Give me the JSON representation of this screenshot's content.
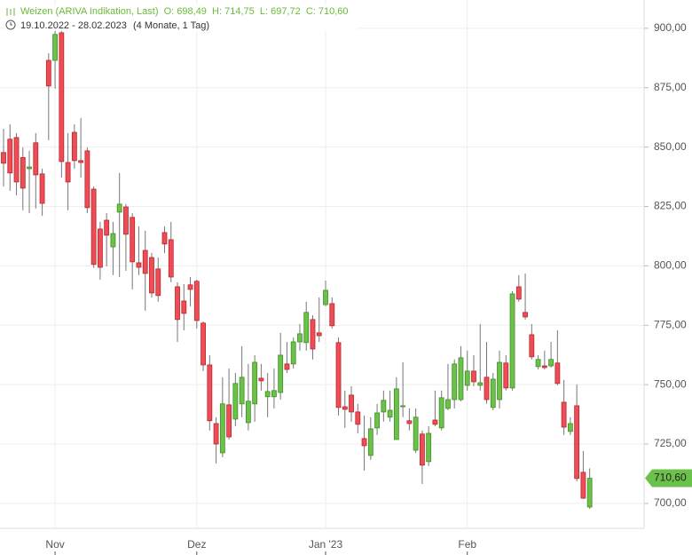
{
  "chart_data": {
    "type": "candlestick",
    "title": "Weizen (ARIVA Indikation, Last)  O: 698,49  H: 714,75  L: 697,72  C: 710,60",
    "subtitle": "19.10.2022 - 28.02.2023",
    "period": "(4 Monate, 1 Tag)",
    "up_color": "#6cc14a",
    "down_color": "#ef4d55",
    "grid": true,
    "ylim": [
      689.5,
      911.9
    ],
    "yticks": [
      {
        "value": 700,
        "label": "700,00"
      },
      {
        "value": 725,
        "label": "725,00"
      },
      {
        "value": 750,
        "label": "750,00"
      },
      {
        "value": 775,
        "label": "775,00"
      },
      {
        "value": 800,
        "label": "800,00"
      },
      {
        "value": 825,
        "label": "825,00"
      },
      {
        "value": 850,
        "label": "850,00"
      },
      {
        "value": 875,
        "label": "875,00"
      },
      {
        "value": 900,
        "label": "900,00"
      }
    ],
    "last_price": {
      "value": 710.6,
      "label": "710,60"
    },
    "categories": [
      null,
      null,
      null,
      null,
      null,
      null,
      null,
      null,
      "Nov",
      null,
      null,
      null,
      null,
      null,
      null,
      null,
      null,
      null,
      null,
      null,
      null,
      null,
      null,
      null,
      null,
      null,
      null,
      null,
      null,
      null,
      "Dez",
      null,
      null,
      null,
      null,
      null,
      null,
      null,
      null,
      null,
      null,
      null,
      null,
      null,
      null,
      null,
      null,
      null,
      null,
      null,
      "Jan '23",
      null,
      null,
      null,
      null,
      null,
      null,
      null,
      null,
      null,
      null,
      null,
      null,
      null,
      null,
      null,
      null,
      null,
      null,
      null,
      null,
      null,
      "Feb",
      null,
      null,
      null,
      null,
      null,
      null,
      null,
      null,
      null,
      null,
      null,
      null,
      null,
      null,
      null,
      null,
      null,
      null,
      null
    ],
    "open": [
      847.7,
      853.3,
      854.0,
      845.6,
      840.9,
      851.8,
      838.7,
      886.5,
      886.5,
      898.1,
      843.5,
      856.2,
      844.3,
      848.4,
      832.3,
      815.5,
      819.2,
      808.0,
      822.6,
      824.8,
      820.4,
      801.3,
      806.5,
      803.5,
      798.7,
      814.0,
      811.0,
      791.2,
      785.2,
      792.0,
      793.5,
      775.9,
      758.3,
      733.6,
      721.3,
      741.5,
      735.5,
      741.9,
      734.0,
      741.9,
      752.7,
      744.9,
      744.9,
      746.7,
      758.7,
      758.7,
      768.0,
      767.7,
      777.4,
      771.8,
      783.7,
      784.1,
      767.7,
      740.7,
      745.6,
      738.5,
      727.3,
      720.2,
      731.8,
      738.5,
      736.3,
      726.9,
      740.7,
      734.8,
      722.4,
      729.2,
      717.6,
      735.1,
      731.8,
      740.0,
      743.7,
      743.7,
      749.7,
      755.7,
      749.7,
      753.1,
      740.4,
      743.7,
      759.1,
      748.6,
      791.2,
      780.4,
      771.0,
      757.6,
      757.9,
      757.9,
      759.1,
      742.6,
      730.3,
      741.1,
      713.1,
      698.49
    ],
    "high": [
      857.7,
      859.6,
      855.9,
      849.8,
      848.4,
      855.9,
      840.9,
      889.5,
      900.7,
      900.7,
      855.9,
      859.6,
      862.2,
      849.8,
      833.4,
      818.5,
      822.2,
      818.5,
      839.1,
      826.0,
      822.2,
      816.6,
      814.8,
      805.4,
      803.5,
      816.6,
      818.5,
      793.1,
      792.3,
      795.3,
      794.2,
      776.6,
      762.4,
      736.3,
      753.1,
      756.8,
      754.9,
      766.2,
      758.7,
      762.4,
      758.7,
      754.9,
      756.8,
      771.8,
      768.0,
      769.9,
      775.5,
      784.9,
      779.2,
      786.7,
      793.8,
      786.7,
      769.9,
      747.5,
      749.3,
      741.9,
      737.0,
      736.3,
      741.9,
      747.5,
      747.5,
      753.1,
      759.4,
      740.0,
      740.0,
      730.7,
      732.5,
      747.5,
      747.5,
      758.7,
      760.6,
      766.2,
      764.3,
      762.4,
      775.5,
      768.0,
      754.9,
      764.3,
      762.4,
      789.3,
      796.1,
      796.8,
      775.5,
      762.4,
      764.3,
      768.0,
      772.9,
      752.0,
      736.3,
      750.1,
      722.1,
      714.75
    ],
    "low": [
      833.4,
      831.6,
      829.7,
      823.4,
      822.2,
      824.1,
      821.1,
      852.9,
      874.6,
      837.2,
      823.4,
      840.9,
      837.2,
      822.2,
      799.1,
      794.2,
      799.8,
      796.1,
      795.3,
      797.9,
      790.1,
      796.1,
      781.1,
      786.7,
      784.9,
      805.4,
      793.1,
      768.0,
      772.9,
      783.0,
      773.6,
      755.7,
      730.7,
      716.8,
      719.4,
      726.9,
      732.5,
      736.3,
      730.7,
      734.4,
      747.5,
      736.3,
      740.0,
      743.7,
      754.9,
      756.8,
      764.3,
      764.3,
      760.6,
      768.0,
      783.0,
      773.6,
      737.0,
      731.8,
      734.4,
      729.5,
      713.8,
      718.3,
      728.8,
      734.4,
      734.4,
      726.9,
      736.3,
      730.7,
      721.3,
      708.2,
      715.7,
      732.5,
      730.7,
      739.2,
      740.0,
      743.0,
      747.5,
      749.3,
      747.5,
      741.9,
      739.2,
      740.0,
      747.5,
      747.5,
      784.9,
      777.4,
      760.6,
      756.4,
      756.4,
      757.2,
      749.7,
      728.8,
      728.8,
      709.3,
      701.9,
      697.72
    ],
    "close": [
      843.2,
      839.1,
      835.3,
      832.7,
      841.6,
      838.3,
      826.3,
      875.7,
      897.4,
      843.9,
      835.3,
      844.3,
      843.5,
      824.5,
      800.6,
      799.4,
      812.9,
      813.6,
      826.0,
      813.3,
      801.7,
      799.4,
      796.8,
      788.6,
      787.5,
      809.2,
      795.3,
      777.4,
      780.0,
      790.1,
      777.0,
      758.3,
      734.8,
      725.0,
      741.9,
      728.0,
      750.5,
      753.1,
      743.0,
      759.4,
      751.6,
      747.1,
      747.5,
      762.4,
      756.4,
      768.0,
      771.4,
      780.4,
      765.0,
      770.6,
      789.7,
      774.8,
      740.4,
      739.6,
      738.5,
      733.3,
      724.3,
      731.4,
      738.1,
      743.4,
      739.2,
      748.2,
      741.1,
      733.6,
      736.3,
      716.1,
      729.5,
      733.3,
      744.5,
      743.7,
      758.7,
      761.3,
      755.7,
      751.2,
      750.8,
      743.7,
      752.3,
      759.4,
      748.6,
      788.2,
      786.0,
      778.5,
      761.7,
      760.6,
      757.2,
      760.6,
      750.5,
      732.1,
      733.6,
      710.5,
      702.2,
      710.6
    ]
  }
}
